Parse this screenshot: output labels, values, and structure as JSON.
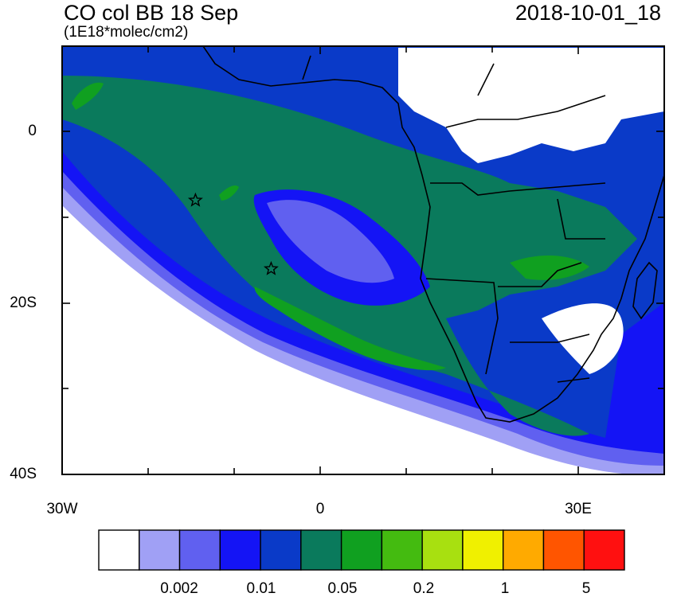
{
  "header": {
    "title": "CO col BB 18 Sep",
    "units": "(1E18*molec/cm2)",
    "timestamp": "2018-10-01_18"
  },
  "map": {
    "region": "Southern Africa and South Atlantic",
    "lon_range": [
      -30,
      40
    ],
    "lat_range": [
      -40,
      10
    ],
    "lat_labels": [
      "0",
      "20S",
      "40S"
    ],
    "lon_labels": [
      "30W",
      "0",
      "30E"
    ],
    "markers": [
      {
        "name": "star-1",
        "lon": -14.5,
        "lat": -8
      },
      {
        "name": "star-2",
        "lon": -5.7,
        "lat": -16
      }
    ]
  },
  "colorbar": {
    "colors": [
      "#ffffff",
      "#a0a0f5",
      "#6060f0",
      "#1414f5",
      "#0a3ac8",
      "#0a7a5c",
      "#10a020",
      "#44bb10",
      "#a8e010",
      "#f0f000",
      "#ffaa00",
      "#ff5500",
      "#ff1010"
    ],
    "labels": [
      "0.002",
      "0.01",
      "0.05",
      "0.2",
      "1",
      "5"
    ]
  }
}
